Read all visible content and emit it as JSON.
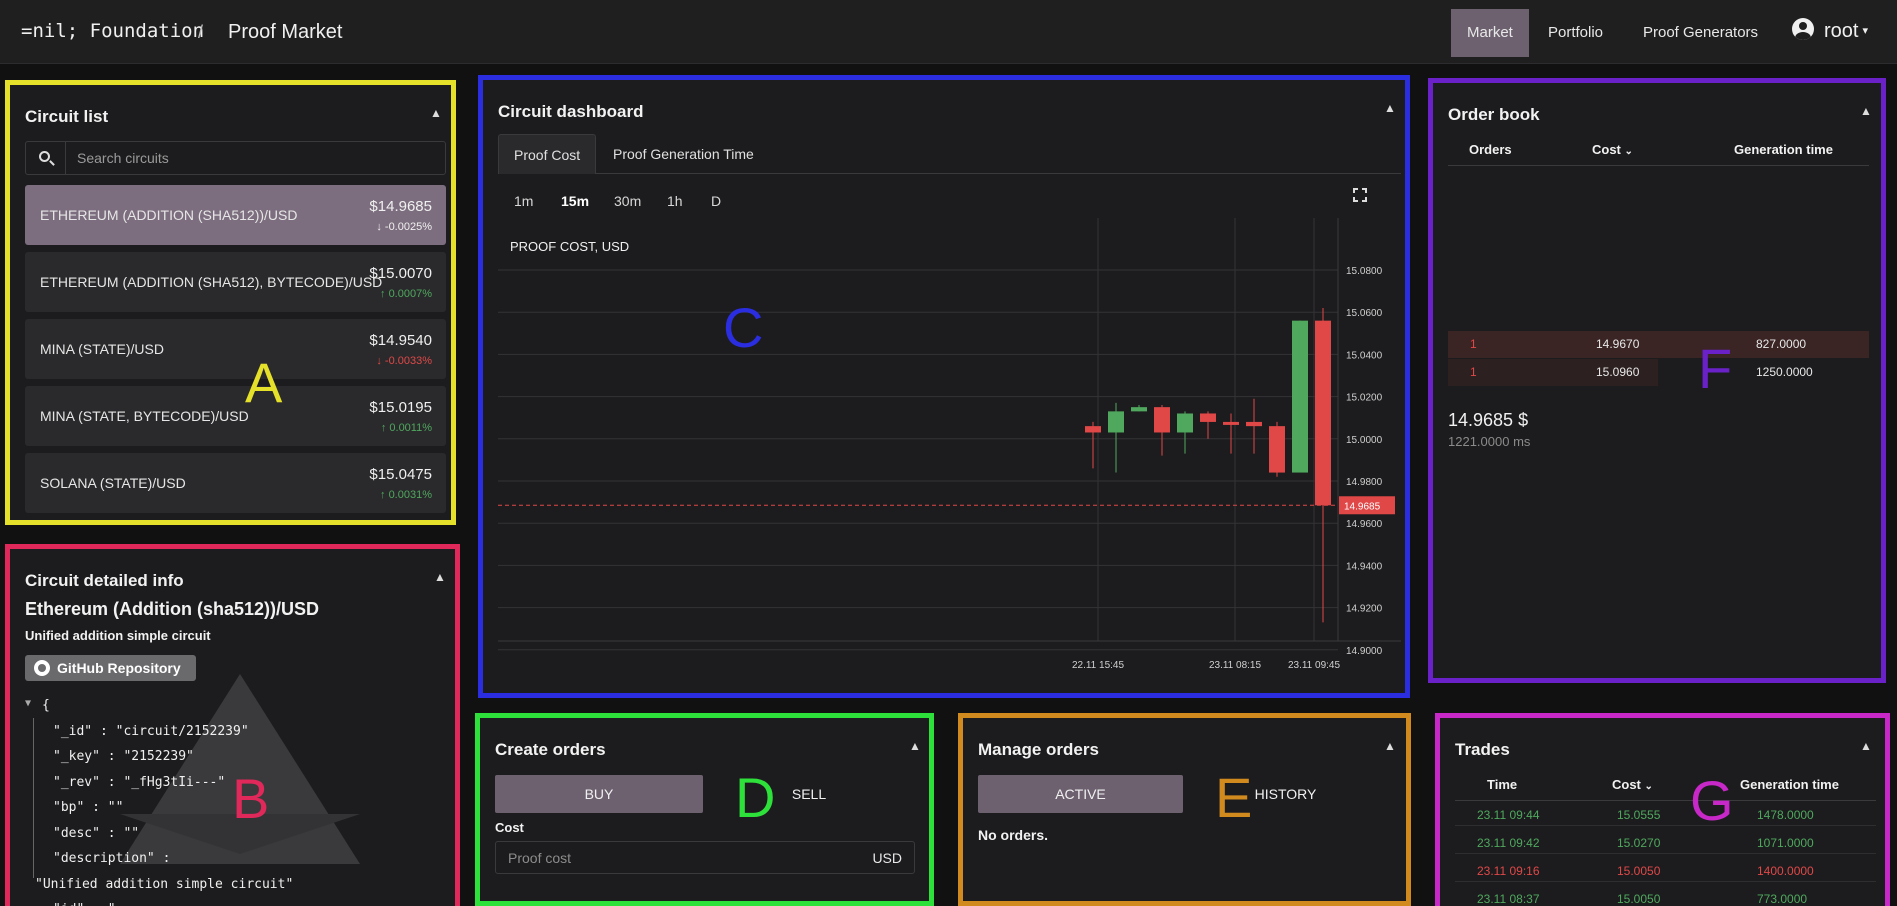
{
  "header": {
    "brand": "=nil; Foundation",
    "separator": "/",
    "page": "Proof Market",
    "nav": [
      {
        "label": "Market",
        "active": true
      },
      {
        "label": "Portfolio",
        "active": false
      },
      {
        "label": "Proof Generators",
        "active": false
      }
    ],
    "user": "root"
  },
  "circuit_list": {
    "title": "Circuit list",
    "search_placeholder": "Search circuits",
    "items": [
      {
        "name": "ETHEREUM (ADDITION (SHA512))/USD",
        "price": "$14.9685",
        "change": "-0.0025%",
        "direction": "down",
        "selected": true
      },
      {
        "name": "ETHEREUM (ADDITION (SHA512), BYTECODE)/USD",
        "price": "$15.0070",
        "change": "0.0007%",
        "direction": "up",
        "selected": false
      },
      {
        "name": "MINA (STATE)/USD",
        "price": "$14.9540",
        "change": "-0.0033%",
        "direction": "down",
        "selected": false
      },
      {
        "name": "MINA (STATE, BYTECODE)/USD",
        "price": "$15.0195",
        "change": "0.0011%",
        "direction": "up",
        "selected": false
      },
      {
        "name": "SOLANA (STATE)/USD",
        "price": "$15.0475",
        "change": "0.0031%",
        "direction": "up",
        "selected": false
      }
    ]
  },
  "circuit_info": {
    "title": "Circuit detailed info",
    "name": "Ethereum (Addition (sha512))/USD",
    "description": "Unified addition simple circuit",
    "github_label": "GitHub Repository",
    "json_lines": [
      "{",
      "\"_id\" : \"circuit/2152239\"",
      "\"_key\" : \"2152239\"",
      "\"_rev\" : \"_fHg3tIi---\"",
      "\"bp\" : \"\"",
      "\"desc\" : \"\"",
      "\"description\" :",
      "\"Unified addition simple circuit\"",
      "\"id\" : \""
    ]
  },
  "dashboard": {
    "title": "Circuit dashboard",
    "tabs": [
      "Proof Cost",
      "Proof Generation Time"
    ],
    "intervals": [
      "1m",
      "15m",
      "30m",
      "1h",
      "D"
    ],
    "active_interval": "15m"
  },
  "chart_data": {
    "type": "candlestick",
    "title": "PROOF COST, USD",
    "y_ticks": [
      "15.0800",
      "15.0600",
      "15.0400",
      "15.0200",
      "15.0000",
      "14.9800",
      "14.9600",
      "14.9400",
      "14.9200",
      "14.9000"
    ],
    "ylim": [
      14.89,
      15.1
    ],
    "x_ticks": [
      "22.11 15:45",
      "23.11 08:15",
      "23.11 09:45"
    ],
    "last_price": "14.9685",
    "candles": [
      {
        "o": 15.006,
        "h": 15.008,
        "l": 14.986,
        "c": 15.003,
        "dir": "down"
      },
      {
        "o": 15.003,
        "h": 15.017,
        "l": 14.984,
        "c": 15.013,
        "dir": "up"
      },
      {
        "o": 15.013,
        "h": 15.016,
        "l": 15.013,
        "c": 15.015,
        "dir": "up"
      },
      {
        "o": 15.015,
        "h": 15.016,
        "l": 14.992,
        "c": 15.003,
        "dir": "down"
      },
      {
        "o": 15.003,
        "h": 15.013,
        "l": 14.993,
        "c": 15.012,
        "dir": "up"
      },
      {
        "o": 15.012,
        "h": 15.013,
        "l": 15.0,
        "c": 15.008,
        "dir": "down"
      },
      {
        "o": 15.008,
        "h": 15.012,
        "l": 14.993,
        "c": 15.007,
        "dir": "down"
      },
      {
        "o": 15.008,
        "h": 15.019,
        "l": 14.993,
        "c": 15.006,
        "dir": "down"
      },
      {
        "o": 15.006,
        "h": 15.008,
        "l": 14.982,
        "c": 14.984,
        "dir": "down"
      },
      {
        "o": 14.984,
        "h": 15.056,
        "l": 14.984,
        "c": 15.056,
        "dir": "up"
      },
      {
        "o": 15.056,
        "h": 15.062,
        "l": 14.913,
        "c": 14.9685,
        "dir": "down"
      }
    ]
  },
  "order_book": {
    "title": "Order book",
    "columns": [
      "Orders",
      "Cost",
      "Generation time"
    ],
    "rows": [
      {
        "orders": "1",
        "cost": "14.9670",
        "gen": "827.0000"
      },
      {
        "orders": "1",
        "cost": "15.0960",
        "gen": "1250.0000"
      }
    ],
    "last_price": "14.9685 $",
    "last_time": "1221.0000 ms"
  },
  "create_orders": {
    "title": "Create orders",
    "buy": "BUY",
    "sell": "SELL",
    "cost_label": "Cost",
    "cost_placeholder": "Proof cost",
    "unit": "USD"
  },
  "manage_orders": {
    "title": "Manage orders",
    "active": "ACTIVE",
    "history": "HISTORY",
    "empty": "No orders."
  },
  "trades": {
    "title": "Trades",
    "columns": [
      "Time",
      "Cost",
      "Generation time"
    ],
    "rows": [
      {
        "time": "23.11 09:44",
        "cost": "15.0555",
        "gen": "1478.0000",
        "dir": "up"
      },
      {
        "time": "23.11 09:42",
        "cost": "15.0270",
        "gen": "1071.0000",
        "dir": "up"
      },
      {
        "time": "23.11 09:16",
        "cost": "15.0050",
        "gen": "1400.0000",
        "dir": "down"
      },
      {
        "time": "23.11 08:37",
        "cost": "15.0050",
        "gen": "773.0000",
        "dir": "up"
      }
    ]
  },
  "annotations": {
    "a": "A",
    "b": "B",
    "c": "C",
    "d": "D",
    "e": "E",
    "f": "F",
    "g": "G"
  },
  "colors": {
    "a": "#e5e02a",
    "b": "#e0285a",
    "c": "#2a2ee0",
    "d": "#2ee03a",
    "e": "#d08a1e",
    "f": "#6a22c8",
    "g": "#c828c8",
    "up": "#4fa85e",
    "down": "#e04848",
    "accent": "#6d6170"
  }
}
